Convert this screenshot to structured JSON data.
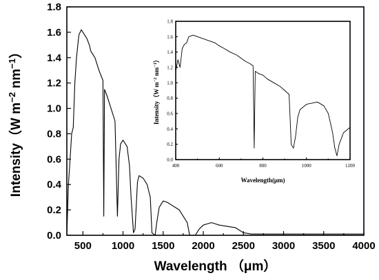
{
  "chart_data": [
    {
      "type": "line",
      "xlabel": "Wavelength （μm）",
      "ylabel": "Intensity（W m−2 nm−1）",
      "ylabel_parts": [
        "Intensity（W m",
        "−2",
        " nm",
        "−1",
        "）"
      ],
      "xlim": [
        300,
        4000
      ],
      "ylim": [
        0,
        1.8
      ],
      "xticks": [
        500,
        1000,
        1500,
        2000,
        2500,
        3000,
        3500,
        4000
      ],
      "yticks": [
        0.0,
        0.2,
        0.4,
        0.6,
        0.8,
        1.0,
        1.2,
        1.4,
        1.6,
        1.8
      ],
      "xtick_labels": [
        "500",
        "1000",
        "1500",
        "2000",
        "2500",
        "3000",
        "3500",
        "4000"
      ],
      "ytick_labels": [
        "0.0",
        "0.2",
        "0.4",
        "0.6",
        "0.8",
        "1.0",
        "1.2",
        "1.4",
        "1.6",
        "1.8"
      ],
      "grid": false,
      "series": [
        {
          "x": [
            300,
            320,
            340,
            360,
            380,
            400,
            420,
            450,
            480,
            500,
            520,
            550,
            580,
            600,
            650,
            700,
            750,
            760,
            770,
            800,
            850,
            900,
            930,
            950,
            970,
            1000,
            1050,
            1080,
            1100,
            1130,
            1150,
            1180,
            1200,
            1250,
            1300,
            1340,
            1360,
            1400,
            1420,
            1450,
            1500,
            1550,
            1600,
            1650,
            1700,
            1750,
            1800,
            1830,
            1900,
            1950,
            2000,
            2050,
            2100,
            2150,
            2200,
            2300,
            2400,
            2450,
            2500,
            2600,
            3000,
            3500,
            4000
          ],
          "y": [
            0.0,
            0.4,
            0.6,
            0.8,
            0.85,
            1.2,
            1.4,
            1.58,
            1.62,
            1.6,
            1.58,
            1.55,
            1.5,
            1.45,
            1.4,
            1.3,
            1.22,
            0.15,
            1.15,
            1.1,
            1.0,
            0.9,
            0.15,
            0.6,
            0.72,
            0.75,
            0.7,
            0.55,
            0.3,
            0.02,
            0.05,
            0.42,
            0.47,
            0.45,
            0.4,
            0.3,
            0.02,
            0.0,
            0.1,
            0.22,
            0.27,
            0.26,
            0.24,
            0.22,
            0.2,
            0.15,
            0.1,
            0.0,
            0.0,
            0.05,
            0.08,
            0.09,
            0.1,
            0.09,
            0.08,
            0.07,
            0.06,
            0.04,
            0.02,
            0.01,
            0.01,
            0.01,
            0.01
          ]
        }
      ]
    },
    {
      "type": "line",
      "xlabel": "Wavelength(μm)",
      "ylabel": "Intensity（W m−2 nm−1）",
      "ylabel_parts": [
        "Intensity（W m",
        "−2",
        " nm",
        "−1",
        "）"
      ],
      "xlim": [
        400,
        1200
      ],
      "ylim": [
        0,
        1.8
      ],
      "xticks": [
        400,
        600,
        800,
        1000,
        1200
      ],
      "yticks": [
        0.0,
        0.2,
        0.4,
        0.6,
        0.8,
        1.0,
        1.2,
        1.4,
        1.6,
        1.8
      ],
      "xtick_labels": [
        "400",
        "600",
        "800",
        "1000",
        "1200"
      ],
      "ytick_labels": [
        "0.0",
        "0.2",
        "0.4",
        "0.6",
        "0.8",
        "1.0",
        "1.2",
        "1.4",
        "1.6",
        "1.8"
      ],
      "grid": false,
      "series": [
        {
          "x": [
            400,
            410,
            420,
            430,
            440,
            450,
            460,
            480,
            500,
            520,
            550,
            580,
            600,
            620,
            650,
            680,
            700,
            720,
            740,
            755,
            760,
            765,
            780,
            800,
            820,
            850,
            880,
            900,
            920,
            930,
            940,
            950,
            960,
            970,
            1000,
            1050,
            1080,
            1100,
            1120,
            1130,
            1140,
            1150,
            1170,
            1200
          ],
          "y": [
            1.15,
            1.3,
            1.2,
            1.45,
            1.5,
            1.52,
            1.6,
            1.62,
            1.6,
            1.58,
            1.55,
            1.52,
            1.48,
            1.45,
            1.4,
            1.36,
            1.32,
            1.28,
            1.25,
            1.22,
            0.15,
            1.15,
            1.12,
            1.1,
            1.05,
            1.0,
            0.95,
            0.9,
            0.85,
            0.2,
            0.15,
            0.3,
            0.55,
            0.65,
            0.72,
            0.75,
            0.7,
            0.6,
            0.35,
            0.15,
            0.05,
            0.2,
            0.35,
            0.42
          ]
        }
      ]
    }
  ]
}
